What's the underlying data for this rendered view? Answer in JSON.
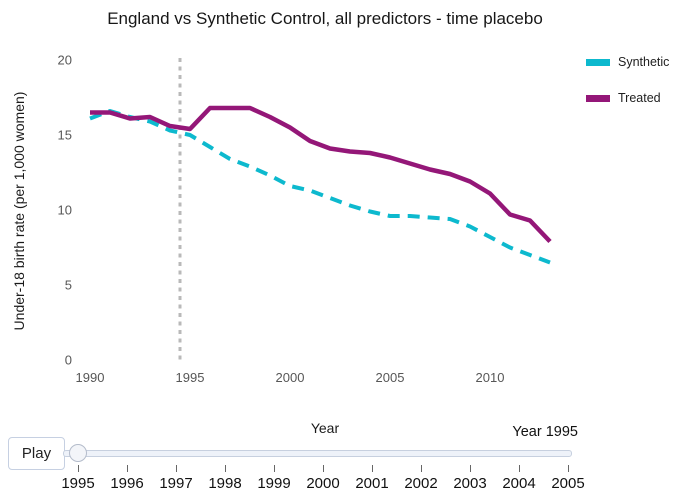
{
  "title": "England vs Synthetic Control, all predictors - time placebo",
  "chart_data": {
    "type": "line",
    "x": [
      1990,
      1991,
      1992,
      1993,
      1994,
      1995,
      1996,
      1997,
      1998,
      1999,
      2000,
      2001,
      2002,
      2003,
      2004,
      2005,
      2006,
      2007,
      2008,
      2009,
      2010,
      2011,
      2012,
      2013
    ],
    "series": [
      {
        "name": "Synthetic",
        "color": "#0db9ce",
        "style": "dashed",
        "values": [
          16.1,
          16.6,
          16.2,
          15.9,
          15.3,
          15.0,
          14.2,
          13.4,
          12.9,
          12.3,
          11.6,
          11.3,
          10.8,
          10.3,
          9.9,
          9.6,
          9.6,
          9.5,
          9.4,
          8.9,
          8.2,
          7.5,
          7.0,
          6.5
        ]
      },
      {
        "name": "Treated",
        "color": "#941778",
        "style": "solid",
        "values": [
          16.5,
          16.5,
          16.1,
          16.2,
          15.6,
          15.4,
          16.8,
          16.8,
          16.8,
          16.2,
          15.5,
          14.6,
          14.1,
          13.9,
          13.8,
          13.5,
          13.1,
          12.7,
          12.4,
          11.9,
          11.1,
          9.7,
          9.3,
          7.9
        ]
      }
    ],
    "xlabel": "Year",
    "ylabel": "Under-18 birth rate (per 1,000 women)",
    "xticks": [
      1990,
      1995,
      2000,
      2005,
      2010
    ],
    "yticks": [
      0,
      5,
      10,
      15,
      20
    ],
    "xlim": [
      1989.5,
      2014
    ],
    "ylim": [
      0,
      20
    ],
    "vline_x": 1994.5,
    "vline_color": "#b9b9b9",
    "vline_style": "dotted",
    "grid": false,
    "legend_position": "top-right"
  },
  "controls": {
    "play_label": "Play",
    "current_value_label": "Year 1995",
    "slider_position": "1995",
    "slider_ticks": [
      "1995",
      "1996",
      "1997",
      "1998",
      "1999",
      "2000",
      "2001",
      "2002",
      "2003",
      "2004",
      "2005"
    ]
  }
}
